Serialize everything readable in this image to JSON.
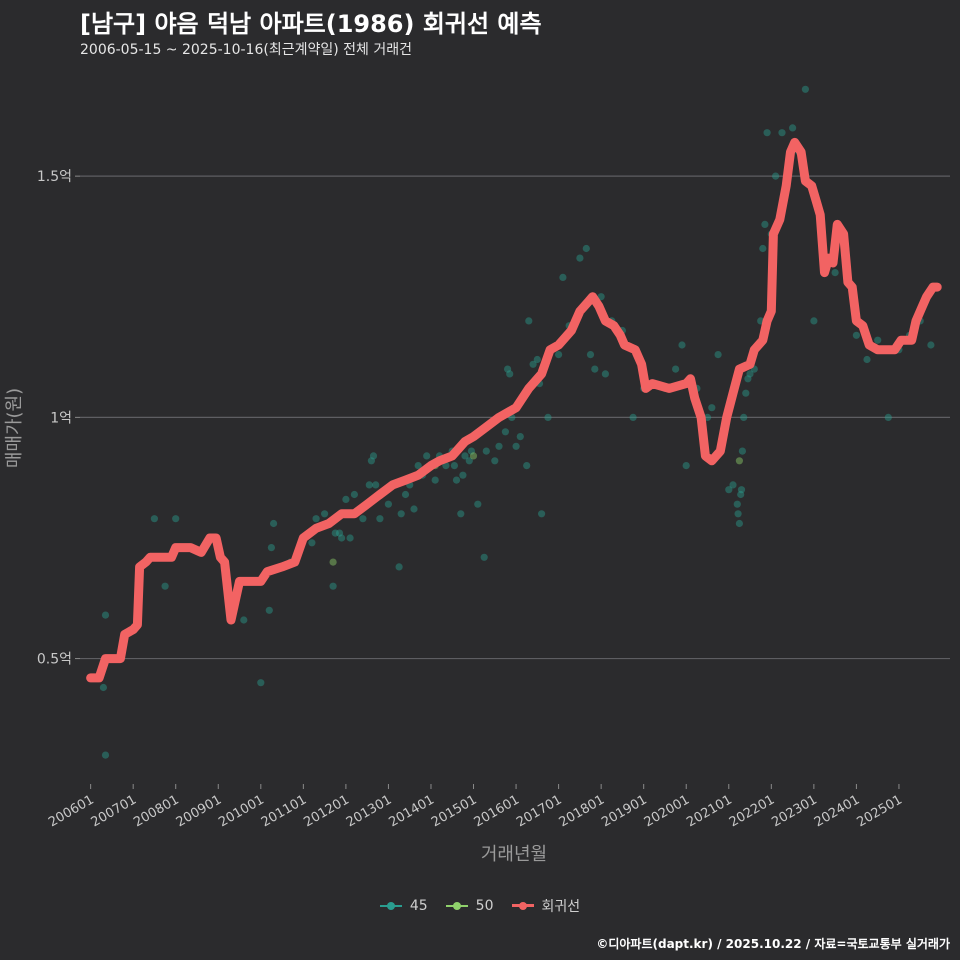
{
  "title": "[남구] 야음 덕남 아파트(1986) 회귀선 예측",
  "subtitle": "2006-05-15 ~ 2025-10-16(최근계약일) 전체 거래건",
  "caption": "©디아파트(dapt.kr) / 2025.10.22 / 자료=국토교통부 실거래가",
  "chart_data": {
    "type": "scatter",
    "title": "[남구] 야음 덕남 아파트(1986) 회귀선 예측",
    "xlabel": "거래년월",
    "ylabel": "매매가(원)",
    "x_unit": "year",
    "xlim": [
      2005.75,
      2026.2
    ],
    "ylim": [
      0.24,
      1.72
    ],
    "y_unit": "억",
    "grid": true,
    "legend_position": "bottom",
    "x_ticks": [
      {
        "value": 2006.0,
        "label": "200601"
      },
      {
        "value": 2007.0,
        "label": "200701"
      },
      {
        "value": 2008.0,
        "label": "200801"
      },
      {
        "value": 2009.0,
        "label": "200901"
      },
      {
        "value": 2010.0,
        "label": "201001"
      },
      {
        "value": 2011.0,
        "label": "201101"
      },
      {
        "value": 2012.0,
        "label": "201201"
      },
      {
        "value": 2013.0,
        "label": "201301"
      },
      {
        "value": 2014.0,
        "label": "201401"
      },
      {
        "value": 2015.0,
        "label": "201501"
      },
      {
        "value": 2016.0,
        "label": "201601"
      },
      {
        "value": 2017.0,
        "label": "201701"
      },
      {
        "value": 2018.0,
        "label": "201801"
      },
      {
        "value": 2019.0,
        "label": "201901"
      },
      {
        "value": 2020.0,
        "label": "202001"
      },
      {
        "value": 2021.0,
        "label": "202101"
      },
      {
        "value": 2022.0,
        "label": "202201"
      },
      {
        "value": 2023.0,
        "label": "202301"
      },
      {
        "value": 2024.0,
        "label": "202401"
      },
      {
        "value": 2025.0,
        "label": "202501"
      }
    ],
    "y_ticks": [
      {
        "value": 0.5,
        "label": "0.5억"
      },
      {
        "value": 1.0,
        "label": "1억"
      },
      {
        "value": 1.5,
        "label": "1.5억"
      }
    ],
    "legend": [
      {
        "name": "45",
        "color": "#2a9d8f",
        "kind": "point"
      },
      {
        "name": "50",
        "color": "#8fd16b",
        "kind": "point"
      },
      {
        "name": "회귀선",
        "color": "#f26363",
        "kind": "line"
      }
    ],
    "series": [
      {
        "name": "45",
        "color": "#2a9d8f",
        "points": [
          [
            2006.3,
            0.44
          ],
          [
            2006.35,
            0.59
          ],
          [
            2006.35,
            0.3
          ],
          [
            2007.5,
            0.79
          ],
          [
            2007.75,
            0.65
          ],
          [
            2008.0,
            0.79
          ],
          [
            2009.6,
            0.58
          ],
          [
            2010.0,
            0.45
          ],
          [
            2010.2,
            0.6
          ],
          [
            2010.25,
            0.73
          ],
          [
            2010.3,
            0.78
          ],
          [
            2010.7,
            0.7
          ],
          [
            2011.2,
            0.74
          ],
          [
            2011.3,
            0.79
          ],
          [
            2011.5,
            0.8
          ],
          [
            2011.7,
            0.65
          ],
          [
            2011.75,
            0.76
          ],
          [
            2011.85,
            0.76
          ],
          [
            2011.9,
            0.75
          ],
          [
            2012.0,
            0.83
          ],
          [
            2012.1,
            0.75
          ],
          [
            2012.2,
            0.84
          ],
          [
            2012.4,
            0.79
          ],
          [
            2012.5,
            0.82
          ],
          [
            2012.55,
            0.86
          ],
          [
            2012.6,
            0.91
          ],
          [
            2012.65,
            0.92
          ],
          [
            2012.7,
            0.86
          ],
          [
            2012.8,
            0.79
          ],
          [
            2013.0,
            0.82
          ],
          [
            2013.25,
            0.69
          ],
          [
            2013.3,
            0.8
          ],
          [
            2013.4,
            0.84
          ],
          [
            2013.5,
            0.86
          ],
          [
            2013.6,
            0.81
          ],
          [
            2013.7,
            0.9
          ],
          [
            2013.8,
            0.88
          ],
          [
            2013.9,
            0.92
          ],
          [
            2014.1,
            0.87
          ],
          [
            2014.2,
            0.92
          ],
          [
            2014.35,
            0.9
          ],
          [
            2014.5,
            0.93
          ],
          [
            2014.55,
            0.9
          ],
          [
            2014.6,
            0.87
          ],
          [
            2014.7,
            0.8
          ],
          [
            2014.75,
            0.88
          ],
          [
            2014.8,
            0.92
          ],
          [
            2014.9,
            0.91
          ],
          [
            2014.95,
            0.93
          ],
          [
            2015.1,
            0.82
          ],
          [
            2015.25,
            0.71
          ],
          [
            2015.3,
            0.93
          ],
          [
            2015.5,
            0.91
          ],
          [
            2015.6,
            0.94
          ],
          [
            2015.75,
            0.97
          ],
          [
            2015.8,
            1.1
          ],
          [
            2015.85,
            1.09
          ],
          [
            2015.9,
            1.0
          ],
          [
            2016.0,
            0.94
          ],
          [
            2016.1,
            0.96
          ],
          [
            2016.25,
            0.9
          ],
          [
            2016.3,
            1.2
          ],
          [
            2016.4,
            1.11
          ],
          [
            2016.5,
            1.12
          ],
          [
            2016.55,
            1.07
          ],
          [
            2016.6,
            0.8
          ],
          [
            2016.75,
            1.0
          ],
          [
            2017.0,
            1.13
          ],
          [
            2017.1,
            1.29
          ],
          [
            2017.25,
            1.19
          ],
          [
            2017.5,
            1.33
          ],
          [
            2017.65,
            1.35
          ],
          [
            2017.75,
            1.13
          ],
          [
            2017.85,
            1.1
          ],
          [
            2017.9,
            1.24
          ],
          [
            2018.0,
            1.25
          ],
          [
            2018.1,
            1.09
          ],
          [
            2018.25,
            1.2
          ],
          [
            2018.5,
            1.18
          ],
          [
            2018.75,
            1.0
          ],
          [
            2019.0,
            1.06
          ],
          [
            2019.25,
            1.07
          ],
          [
            2019.5,
            1.06
          ],
          [
            2019.75,
            1.1
          ],
          [
            2019.9,
            1.15
          ],
          [
            2020.0,
            0.9
          ],
          [
            2020.25,
            1.06
          ],
          [
            2020.5,
            1.0
          ],
          [
            2020.6,
            1.02
          ],
          [
            2020.75,
            1.13
          ],
          [
            2021.0,
            0.85
          ],
          [
            2021.1,
            0.86
          ],
          [
            2021.2,
            0.82
          ],
          [
            2021.22,
            0.8
          ],
          [
            2021.25,
            0.78
          ],
          [
            2021.28,
            0.84
          ],
          [
            2021.3,
            0.85
          ],
          [
            2021.32,
            0.93
          ],
          [
            2021.35,
            1.0
          ],
          [
            2021.4,
            1.05
          ],
          [
            2021.45,
            1.08
          ],
          [
            2021.5,
            1.09
          ],
          [
            2021.6,
            1.1
          ],
          [
            2021.75,
            1.2
          ],
          [
            2021.8,
            1.35
          ],
          [
            2021.85,
            1.4
          ],
          [
            2021.9,
            1.59
          ],
          [
            2022.0,
            1.38
          ],
          [
            2022.1,
            1.5
          ],
          [
            2022.25,
            1.59
          ],
          [
            2022.5,
            1.6
          ],
          [
            2022.65,
            1.55
          ],
          [
            2022.8,
            1.68
          ],
          [
            2023.0,
            1.2
          ],
          [
            2023.5,
            1.3
          ],
          [
            2023.75,
            1.35
          ],
          [
            2024.0,
            1.17
          ],
          [
            2024.25,
            1.12
          ],
          [
            2024.5,
            1.16
          ],
          [
            2024.75,
            1.0
          ],
          [
            2025.0,
            1.14
          ],
          [
            2025.25,
            1.17
          ],
          [
            2025.5,
            1.2
          ],
          [
            2025.75,
            1.15
          ]
        ]
      },
      {
        "name": "50",
        "color": "#8fd16b",
        "points": [
          [
            2011.7,
            0.7
          ],
          [
            2014.1,
            0.9
          ],
          [
            2015.0,
            0.92
          ],
          [
            2021.25,
            0.91
          ]
        ]
      },
      {
        "name": "회귀선",
        "color": "#f26363",
        "points": [
          [
            2006.0,
            0.46
          ],
          [
            2006.2,
            0.46
          ],
          [
            2006.35,
            0.5
          ],
          [
            2006.7,
            0.5
          ],
          [
            2006.8,
            0.55
          ],
          [
            2007.0,
            0.56
          ],
          [
            2007.1,
            0.57
          ],
          [
            2007.15,
            0.69
          ],
          [
            2007.3,
            0.7
          ],
          [
            2007.4,
            0.71
          ],
          [
            2007.9,
            0.71
          ],
          [
            2008.0,
            0.73
          ],
          [
            2008.35,
            0.73
          ],
          [
            2008.6,
            0.72
          ],
          [
            2008.8,
            0.75
          ],
          [
            2008.95,
            0.75
          ],
          [
            2009.05,
            0.71
          ],
          [
            2009.15,
            0.7
          ],
          [
            2009.3,
            0.58
          ],
          [
            2009.5,
            0.66
          ],
          [
            2009.9,
            0.66
          ],
          [
            2010.0,
            0.66
          ],
          [
            2010.15,
            0.68
          ],
          [
            2010.5,
            0.69
          ],
          [
            2010.8,
            0.7
          ],
          [
            2011.0,
            0.75
          ],
          [
            2011.3,
            0.77
          ],
          [
            2011.6,
            0.78
          ],
          [
            2011.9,
            0.8
          ],
          [
            2012.2,
            0.8
          ],
          [
            2012.5,
            0.82
          ],
          [
            2012.8,
            0.84
          ],
          [
            2013.1,
            0.86
          ],
          [
            2013.4,
            0.87
          ],
          [
            2013.7,
            0.88
          ],
          [
            2014.0,
            0.9
          ],
          [
            2014.2,
            0.91
          ],
          [
            2014.5,
            0.92
          ],
          [
            2014.8,
            0.95
          ],
          [
            2015.0,
            0.96
          ],
          [
            2015.3,
            0.98
          ],
          [
            2015.6,
            1.0
          ],
          [
            2016.0,
            1.02
          ],
          [
            2016.3,
            1.06
          ],
          [
            2016.6,
            1.09
          ],
          [
            2016.8,
            1.14
          ],
          [
            2017.0,
            1.15
          ],
          [
            2017.3,
            1.18
          ],
          [
            2017.5,
            1.22
          ],
          [
            2017.7,
            1.24
          ],
          [
            2017.8,
            1.25
          ],
          [
            2017.95,
            1.23
          ],
          [
            2018.1,
            1.2
          ],
          [
            2018.3,
            1.19
          ],
          [
            2018.45,
            1.17
          ],
          [
            2018.55,
            1.15
          ],
          [
            2018.8,
            1.14
          ],
          [
            2018.95,
            1.11
          ],
          [
            2019.05,
            1.06
          ],
          [
            2019.2,
            1.07
          ],
          [
            2019.6,
            1.06
          ],
          [
            2020.0,
            1.07
          ],
          [
            2020.1,
            1.08
          ],
          [
            2020.2,
            1.04
          ],
          [
            2020.35,
            1.0
          ],
          [
            2020.45,
            0.92
          ],
          [
            2020.6,
            0.91
          ],
          [
            2020.8,
            0.93
          ],
          [
            2020.95,
            1.0
          ],
          [
            2021.1,
            1.05
          ],
          [
            2021.25,
            1.1
          ],
          [
            2021.5,
            1.11
          ],
          [
            2021.6,
            1.14
          ],
          [
            2021.8,
            1.16
          ],
          [
            2021.9,
            1.2
          ],
          [
            2022.0,
            1.22
          ],
          [
            2022.05,
            1.38
          ],
          [
            2022.2,
            1.41
          ],
          [
            2022.35,
            1.48
          ],
          [
            2022.45,
            1.55
          ],
          [
            2022.55,
            1.57
          ],
          [
            2022.7,
            1.55
          ],
          [
            2022.8,
            1.49
          ],
          [
            2022.95,
            1.48
          ],
          [
            2023.05,
            1.45
          ],
          [
            2023.15,
            1.42
          ],
          [
            2023.25,
            1.3
          ],
          [
            2023.35,
            1.33
          ],
          [
            2023.45,
            1.32
          ],
          [
            2023.55,
            1.4
          ],
          [
            2023.7,
            1.38
          ],
          [
            2023.8,
            1.28
          ],
          [
            2023.9,
            1.27
          ],
          [
            2024.0,
            1.2
          ],
          [
            2024.15,
            1.19
          ],
          [
            2024.3,
            1.15
          ],
          [
            2024.5,
            1.14
          ],
          [
            2024.9,
            1.14
          ],
          [
            2025.05,
            1.16
          ],
          [
            2025.3,
            1.16
          ],
          [
            2025.4,
            1.2
          ],
          [
            2025.55,
            1.23
          ],
          [
            2025.65,
            1.25
          ],
          [
            2025.8,
            1.27
          ],
          [
            2025.9,
            1.27
          ]
        ]
      }
    ]
  }
}
